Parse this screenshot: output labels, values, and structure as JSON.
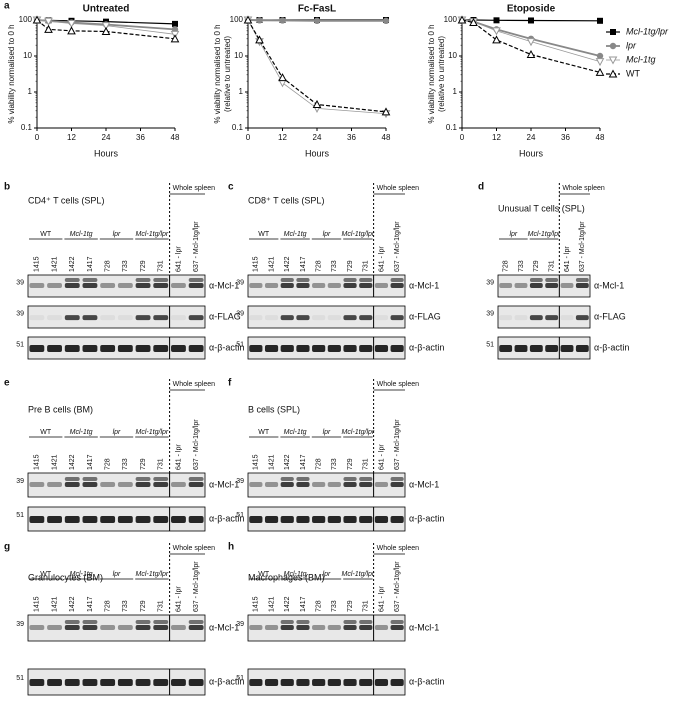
{
  "panel_a": {
    "label": "a"
  },
  "chart_data": [
    {
      "type": "line",
      "title": "Untreated",
      "ylabel": [
        "% viability normalised to 0 h"
      ],
      "xlabel": "Hours",
      "x": [
        0,
        4,
        12,
        24,
        48
      ],
      "xlim": [
        0,
        48
      ],
      "xticks": [
        0,
        12,
        24,
        36,
        48
      ],
      "ylim": [
        0.1,
        100
      ],
      "yticks": [
        0.1,
        1,
        10,
        100
      ],
      "log_scale": true,
      "series": [
        {
          "color": "#000000",
          "marker": "square",
          "dash": false,
          "values": [
            100,
            98,
            95,
            90,
            78
          ]
        },
        {
          "color": "#888888",
          "marker": "circle",
          "dash": false,
          "values": [
            100,
            95,
            85,
            75,
            55
          ]
        },
        {
          "color": "#999999",
          "marker": "triangle-down",
          "dash": false,
          "values": [
            100,
            92,
            80,
            70,
            40
          ]
        },
        {
          "color": "#000000",
          "marker": "triangle-up",
          "dash": true,
          "values": [
            100,
            55,
            50,
            48,
            30
          ]
        }
      ]
    },
    {
      "type": "line",
      "title": "Fc-FasL",
      "ylabel": [
        "% viability normalised to 0 h",
        "(relative to untreated)"
      ],
      "xlabel": "Hours",
      "x": [
        0,
        4,
        12,
        24,
        48
      ],
      "xlim": [
        0,
        48
      ],
      "xticks": [
        0,
        12,
        24,
        36,
        48
      ],
      "ylim": [
        0.1,
        100
      ],
      "yticks": [
        0.1,
        1,
        10,
        100
      ],
      "log_scale": true,
      "series": [
        {
          "color": "#000000",
          "marker": "square",
          "dash": false,
          "values": [
            100,
            100,
            100,
            100,
            100
          ]
        },
        {
          "color": "#888888",
          "marker": "circle",
          "dash": false,
          "values": [
            100,
            98,
            97,
            95,
            95
          ]
        },
        {
          "color": "#999999",
          "marker": "triangle-down",
          "dash": false,
          "values": [
            100,
            25,
            1.8,
            0.35,
            0.25
          ]
        },
        {
          "color": "#000000",
          "marker": "triangle-up",
          "dash": true,
          "values": [
            100,
            28,
            2.5,
            0.45,
            0.28
          ]
        }
      ]
    },
    {
      "type": "line",
      "title": "Etoposide",
      "ylabel": [
        "% viability normalised to 0 h",
        "(relative to untreated)"
      ],
      "xlabel": "Hours",
      "x": [
        0,
        4,
        12,
        24,
        48
      ],
      "xlim": [
        0,
        48
      ],
      "xticks": [
        0,
        12,
        24,
        36,
        48
      ],
      "ylim": [
        0.1,
        100
      ],
      "yticks": [
        0.1,
        1,
        10,
        100
      ],
      "log_scale": true,
      "legend": "outside-right",
      "series": [
        {
          "name": "Mcl-1tg/lpr",
          "color": "#000000",
          "marker": "square",
          "dash": false,
          "values": [
            100,
            100,
            98,
            97,
            95
          ]
        },
        {
          "name": "lpr",
          "color": "#888888",
          "marker": "circle",
          "dash": false,
          "values": [
            100,
            90,
            55,
            30,
            10
          ]
        },
        {
          "name": "Mcl-1tg",
          "color": "#999999",
          "marker": "triangle-down",
          "dash": false,
          "values": [
            100,
            90,
            50,
            25,
            7
          ]
        },
        {
          "name": "WT",
          "color": "#000000",
          "marker": "triangle-up",
          "dash": true,
          "values": [
            100,
            85,
            28,
            11,
            3.5
          ]
        }
      ]
    }
  ],
  "blots": [
    {
      "label": "b",
      "title": "CD4⁺ T cells (SPL)",
      "groups": [
        {
          "name": "WT",
          "lanes": [
            "1415",
            "1421"
          ]
        },
        {
          "name": "Mcl-1tg",
          "lanes": [
            "1422",
            "1417"
          ]
        },
        {
          "name": "lpr",
          "lanes": [
            "728",
            "733"
          ]
        },
        {
          "name": "Mcl-1tg/lpr",
          "lanes": [
            "729",
            "731"
          ]
        }
      ],
      "spleen": {
        "title": "Whole spleen",
        "lanes": [
          "641 - lpr",
          "637 - Mcl-1tg/lpr"
        ]
      },
      "bands": [
        {
          "mw": "39",
          "label": "α-Mcl-1"
        },
        {
          "mw": "39",
          "label": "α-FLAG"
        },
        {
          "mw": "51",
          "label": "α-β-actin"
        }
      ]
    },
    {
      "label": "c",
      "title": "CD8⁺ T cells (SPL)",
      "groups": [
        {
          "name": "WT",
          "lanes": [
            "1415",
            "1421"
          ]
        },
        {
          "name": "Mcl-1tg",
          "lanes": [
            "1422",
            "1417"
          ]
        },
        {
          "name": "lpr",
          "lanes": [
            "728",
            "733"
          ]
        },
        {
          "name": "Mcl-1tg/lpr",
          "lanes": [
            "729",
            "731"
          ]
        }
      ],
      "spleen": {
        "title": "Whole spleen",
        "lanes": [
          "641 - lpr",
          "637 - Mcl-1tg/lpr"
        ]
      },
      "bands": [
        {
          "mw": "39",
          "label": "α-Mcl-1"
        },
        {
          "mw": "39",
          "label": "α-FLAG"
        },
        {
          "mw": "51",
          "label": "α-β-actin"
        }
      ]
    },
    {
      "label": "d",
      "title": "Unusual T cells (SPL)",
      "groups": [
        {
          "name": "lpr",
          "lanes": [
            "728",
            "733"
          ]
        },
        {
          "name": "Mcl-1tg/lpr",
          "lanes": [
            "729",
            "731"
          ]
        }
      ],
      "spleen": {
        "title": "Whole spleen",
        "lanes": [
          "641 - lpr",
          "637 - Mcl-1tg/lpr"
        ]
      },
      "bands": [
        {
          "mw": "39",
          "label": "α-Mcl-1"
        },
        {
          "mw": "39",
          "label": "α-FLAG"
        },
        {
          "mw": "51",
          "label": "α-β-actin"
        }
      ]
    },
    {
      "label": "e",
      "title": "Pre B cells (BM)",
      "groups": [
        {
          "name": "WT",
          "lanes": [
            "1415",
            "1421"
          ]
        },
        {
          "name": "Mcl-1tg",
          "lanes": [
            "1422",
            "1417"
          ]
        },
        {
          "name": "lpr",
          "lanes": [
            "728",
            "733"
          ]
        },
        {
          "name": "Mcl-1tg/lpr",
          "lanes": [
            "729",
            "731"
          ]
        }
      ],
      "spleen": {
        "title": "Whole spleen",
        "lanes": [
          "641 - lpr",
          "637 - Mcl-1tg/lpr"
        ]
      },
      "bands": [
        {
          "mw": "39",
          "label": "α-Mcl-1"
        },
        {
          "mw": "51",
          "label": "α-β-actin"
        }
      ]
    },
    {
      "label": "f",
      "title": "B cells (SPL)",
      "groups": [
        {
          "name": "WT",
          "lanes": [
            "1415",
            "1421"
          ]
        },
        {
          "name": "Mcl-1tg",
          "lanes": [
            "1422",
            "1417"
          ]
        },
        {
          "name": "lpr",
          "lanes": [
            "728",
            "733"
          ]
        },
        {
          "name": "Mcl-1tg/lpr",
          "lanes": [
            "729",
            "731"
          ]
        }
      ],
      "spleen": {
        "title": "Whole spleen",
        "lanes": [
          "641 - lpr",
          "637 - Mcl-1tg/lpr"
        ]
      },
      "bands": [
        {
          "mw": "39",
          "label": "α-Mcl-1"
        },
        {
          "mw": "51",
          "label": "α-β-actin"
        }
      ]
    },
    {
      "label": "g",
      "title": "Granulocytes (BM)",
      "groups": [
        {
          "name": "WT",
          "lanes": [
            "1415",
            "1421"
          ]
        },
        {
          "name": "Mcl-1tg",
          "lanes": [
            "1422",
            "1417"
          ]
        },
        {
          "name": "lpr",
          "lanes": [
            "728",
            "733"
          ]
        },
        {
          "name": "Mcl-1tg/lpr",
          "lanes": [
            "729",
            "731"
          ]
        }
      ],
      "spleen": {
        "title": "Whole spleen",
        "lanes": [
          "641 - lpr",
          "637 - Mcl-1tg/lpr"
        ]
      },
      "bands": [
        {
          "mw": "39",
          "label": "α-Mcl-1"
        },
        {
          "mw": "51",
          "label": "α-β-actin"
        }
      ]
    },
    {
      "label": "h",
      "title": "Macrophages (BM)",
      "groups": [
        {
          "name": "WT",
          "lanes": [
            "1415",
            "1421"
          ]
        },
        {
          "name": "Mcl-1tg",
          "lanes": [
            "1422",
            "1417"
          ]
        },
        {
          "name": "lpr",
          "lanes": [
            "728",
            "733"
          ]
        },
        {
          "name": "Mcl-1tg/lpr",
          "lanes": [
            "729",
            "731"
          ]
        }
      ],
      "spleen": {
        "title": "Whole spleen",
        "lanes": [
          "641 - lpr",
          "637 - Mcl-1tg/lpr"
        ]
      },
      "bands": [
        {
          "mw": "39",
          "label": "α-Mcl-1"
        },
        {
          "mw": "51",
          "label": "α-β-actin"
        }
      ]
    }
  ]
}
